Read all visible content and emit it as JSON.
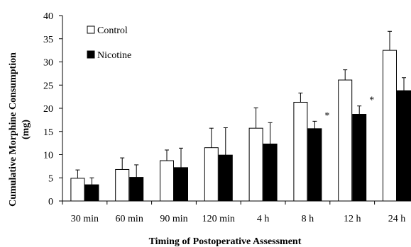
{
  "chart_data": {
    "type": "bar",
    "xlabel": "Timing of Postoperative Assessment",
    "ylabel_lines": [
      "Cumulative Morphine Consumption",
      "(mg)"
    ],
    "ylim": [
      0,
      40
    ],
    "yticks": [
      "0",
      "5",
      "10",
      "15",
      "20",
      "25",
      "30",
      "35",
      "40"
    ],
    "ytick_values": [
      0,
      5,
      10,
      15,
      20,
      25,
      30,
      35,
      40
    ],
    "categories": [
      "30 min",
      "60 min",
      "90 min",
      "120 min",
      "4 h",
      "8 h",
      "12 h",
      "24 h"
    ],
    "series": [
      {
        "name": "Control",
        "fill": "#ffffff",
        "values": [
          4.9,
          6.8,
          8.7,
          11.5,
          15.7,
          21.3,
          26.1,
          32.5
        ],
        "error": [
          1.8,
          2.5,
          2.3,
          4.2,
          4.4,
          2.0,
          2.2,
          4.1
        ]
      },
      {
        "name": "Nicotine",
        "fill": "#000000",
        "values": [
          3.5,
          5.1,
          7.2,
          9.9,
          12.3,
          15.6,
          18.7,
          23.8
        ],
        "error": [
          1.5,
          2.7,
          4.2,
          5.9,
          4.6,
          1.6,
          1.8,
          2.8
        ]
      }
    ],
    "significance": [
      "",
      "",
      "",
      "",
      "",
      "*",
      "*",
      "*"
    ],
    "legend_position": "top-left"
  }
}
